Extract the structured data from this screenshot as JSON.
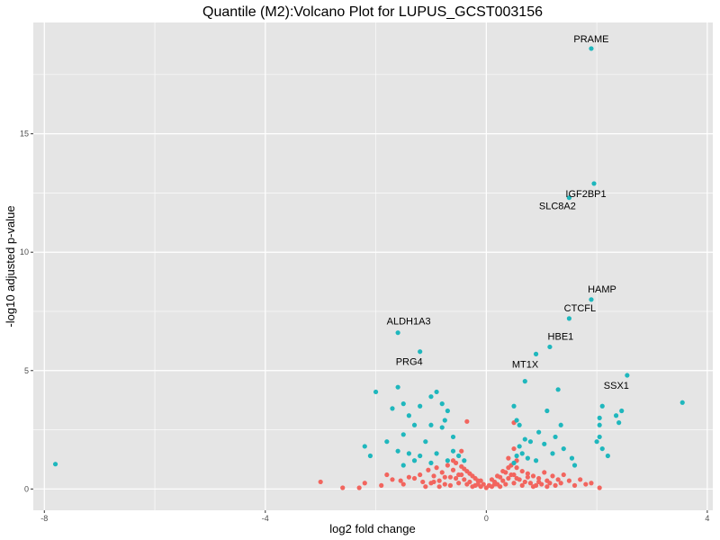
{
  "chart_data": {
    "type": "scatter",
    "title": "Quantile (M2):Volcano Plot for LUPUS_GCST003156",
    "xlabel": "log2 fold change",
    "ylabel": "-log10 adjusted p-value",
    "xlim": [
      -8.2,
      4.1
    ],
    "ylim": [
      -0.9,
      19.7
    ],
    "x_ticks": [
      -8,
      -4,
      0,
      4
    ],
    "y_ticks": [
      0,
      5,
      10,
      15
    ],
    "grid": true,
    "legend": "none",
    "colors": {
      "significant": "#1fb7bd",
      "not_significant": "#f2655e",
      "panel_bg": "#e5e5e5",
      "grid": "#ffffff"
    },
    "labeled_genes": [
      {
        "label": "PRAME",
        "x": 1.9,
        "y": 18.6
      },
      {
        "label": "IGF2BP1",
        "x": 1.95,
        "y": 12.9
      },
      {
        "label": "SLC8A2",
        "x": 1.5,
        "y": 12.3
      },
      {
        "label": "HAMP",
        "x": 1.9,
        "y": 8.0
      },
      {
        "label": "CTCFL",
        "x": 1.5,
        "y": 7.2
      },
      {
        "label": "ALDH1A3",
        "x": -1.6,
        "y": 6.6
      },
      {
        "label": "HBE1",
        "x": 1.15,
        "y": 6.0
      },
      {
        "label": "PRG4",
        "x": -1.2,
        "y": 5.8
      },
      {
        "label": "MT1X",
        "x": 0.9,
        "y": 5.7
      },
      {
        "label": "SSX1",
        "x": 2.55,
        "y": 4.8
      }
    ],
    "significant_points": [
      [
        -7.8,
        1.05
      ],
      [
        3.55,
        3.65
      ],
      [
        -2.0,
        4.1
      ],
      [
        -1.6,
        4.3
      ],
      [
        -1.5,
        3.6
      ],
      [
        -1.7,
        3.4
      ],
      [
        -1.4,
        3.1
      ],
      [
        -1.2,
        3.5
      ],
      [
        -1.0,
        3.9
      ],
      [
        -0.9,
        4.1
      ],
      [
        -0.8,
        3.6
      ],
      [
        -0.7,
        3.3
      ],
      [
        -0.75,
        2.9
      ],
      [
        -1.0,
        2.7
      ],
      [
        -1.3,
        2.7
      ],
      [
        -0.8,
        2.6
      ],
      [
        -1.5,
        2.3
      ],
      [
        -1.1,
        2.0
      ],
      [
        -0.6,
        2.2
      ],
      [
        -1.8,
        2.0
      ],
      [
        -2.2,
        1.8
      ],
      [
        -1.6,
        1.6
      ],
      [
        -1.4,
        1.5
      ],
      [
        -1.2,
        1.4
      ],
      [
        -0.9,
        1.5
      ],
      [
        -0.6,
        1.6
      ],
      [
        -0.5,
        1.4
      ],
      [
        -0.4,
        1.2
      ],
      [
        -0.7,
        1.2
      ],
      [
        -1.0,
        1.1
      ],
      [
        -1.3,
        1.2
      ],
      [
        -2.1,
        1.4
      ],
      [
        -1.5,
        1.0
      ],
      [
        0.5,
        3.5
      ],
      [
        0.55,
        2.9
      ],
      [
        0.6,
        2.7
      ],
      [
        0.7,
        2.1
      ],
      [
        0.8,
        2.0
      ],
      [
        0.6,
        1.8
      ],
      [
        0.65,
        1.5
      ],
      [
        0.75,
        1.3
      ],
      [
        0.5,
        1.1
      ],
      [
        0.55,
        1.4
      ],
      [
        0.9,
        1.2
      ],
      [
        0.95,
        2.4
      ],
      [
        1.05,
        1.9
      ],
      [
        1.1,
        3.3
      ],
      [
        1.3,
        4.2
      ],
      [
        1.35,
        2.7
      ],
      [
        1.25,
        2.2
      ],
      [
        1.4,
        1.7
      ],
      [
        1.55,
        1.3
      ],
      [
        1.6,
        1.0
      ],
      [
        1.2,
        1.5
      ],
      [
        0.7,
        4.55
      ],
      [
        2.05,
        3.0
      ],
      [
        2.05,
        2.7
      ],
      [
        2.1,
        3.5
      ],
      [
        2.35,
        3.1
      ],
      [
        2.4,
        2.8
      ],
      [
        2.45,
        3.3
      ],
      [
        2.05,
        2.2
      ],
      [
        2.0,
        2.0
      ],
      [
        2.1,
        1.7
      ],
      [
        2.2,
        1.4
      ]
    ],
    "nonsignificant_points": [
      [
        -3.0,
        0.3
      ],
      [
        -2.6,
        0.05
      ],
      [
        -2.3,
        0.05
      ],
      [
        -2.2,
        0.25
      ],
      [
        -1.9,
        0.15
      ],
      [
        -1.8,
        0.6
      ],
      [
        -1.7,
        0.4
      ],
      [
        -1.55,
        0.35
      ],
      [
        -1.5,
        0.2
      ],
      [
        -1.4,
        0.5
      ],
      [
        -1.3,
        0.45
      ],
      [
        -1.2,
        0.6
      ],
      [
        -1.15,
        0.3
      ],
      [
        -1.05,
        0.8
      ],
      [
        -1.0,
        0.25
      ],
      [
        -0.95,
        0.55
      ],
      [
        -0.9,
        0.9
      ],
      [
        -0.85,
        0.35
      ],
      [
        -0.8,
        0.7
      ],
      [
        -0.75,
        0.2
      ],
      [
        -0.7,
        1.0
      ],
      [
        -0.65,
        0.5
      ],
      [
        -0.6,
        0.8
      ],
      [
        -0.55,
        1.1
      ],
      [
        -0.5,
        0.6
      ],
      [
        -0.45,
        0.95
      ],
      [
        -0.4,
        0.4
      ],
      [
        -0.35,
        0.75
      ],
      [
        -0.3,
        0.3
      ],
      [
        -0.25,
        0.55
      ],
      [
        -0.2,
        0.15
      ],
      [
        -0.15,
        0.35
      ],
      [
        -0.1,
        0.1
      ],
      [
        -0.05,
        0.2
      ],
      [
        0.0,
        0.05
      ],
      [
        0.05,
        0.15
      ],
      [
        0.1,
        0.1
      ],
      [
        0.15,
        0.3
      ],
      [
        0.2,
        0.2
      ],
      [
        0.25,
        0.5
      ],
      [
        0.3,
        0.35
      ],
      [
        0.35,
        0.7
      ],
      [
        0.4,
        0.45
      ],
      [
        0.45,
        1.0
      ],
      [
        0.5,
        0.6
      ],
      [
        0.55,
        0.9
      ],
      [
        0.6,
        0.4
      ],
      [
        0.65,
        0.75
      ],
      [
        0.7,
        0.3
      ],
      [
        0.75,
        0.65
      ],
      [
        0.8,
        0.25
      ],
      [
        0.85,
        0.55
      ],
      [
        0.9,
        0.15
      ],
      [
        0.95,
        0.45
      ],
      [
        1.0,
        0.2
      ],
      [
        1.05,
        0.7
      ],
      [
        1.1,
        0.35
      ],
      [
        1.15,
        0.25
      ],
      [
        1.2,
        0.55
      ],
      [
        1.25,
        0.15
      ],
      [
        1.3,
        0.4
      ],
      [
        1.35,
        0.25
      ],
      [
        1.4,
        0.6
      ],
      [
        1.5,
        0.35
      ],
      [
        1.6,
        0.15
      ],
      [
        1.7,
        0.4
      ],
      [
        1.8,
        0.2
      ],
      [
        1.9,
        0.25
      ],
      [
        2.05,
        0.05
      ],
      [
        0.5,
        2.8
      ],
      [
        0.5,
        1.7
      ],
      [
        -0.45,
        1.6
      ],
      [
        -0.35,
        2.85
      ],
      [
        0.4,
        1.3
      ],
      [
        -0.6,
        1.2
      ],
      [
        0.55,
        1.2
      ],
      [
        -0.4,
        0.85
      ],
      [
        -0.3,
        0.65
      ],
      [
        -0.2,
        0.45
      ],
      [
        -0.1,
        0.35
      ],
      [
        0.1,
        0.4
      ],
      [
        0.2,
        0.55
      ],
      [
        0.3,
        0.75
      ],
      [
        0.4,
        0.9
      ],
      [
        -0.5,
        0.25
      ],
      [
        0.5,
        0.25
      ],
      [
        -0.25,
        0.1
      ],
      [
        0.25,
        0.1
      ],
      [
        -0.15,
        0.2
      ],
      [
        0.15,
        0.2
      ],
      [
        -0.35,
        0.2
      ],
      [
        0.35,
        0.2
      ],
      [
        -0.55,
        0.45
      ],
      [
        0.55,
        0.45
      ],
      [
        -0.65,
        0.15
      ],
      [
        0.65,
        0.15
      ],
      [
        -0.45,
        0.6
      ],
      [
        0.45,
        0.6
      ],
      [
        -0.75,
        0.5
      ],
      [
        0.75,
        0.5
      ],
      [
        -0.85,
        0.1
      ],
      [
        0.85,
        0.1
      ],
      [
        -0.95,
        0.3
      ],
      [
        0.95,
        0.3
      ],
      [
        -1.1,
        0.1
      ],
      [
        1.1,
        0.1
      ]
    ]
  }
}
